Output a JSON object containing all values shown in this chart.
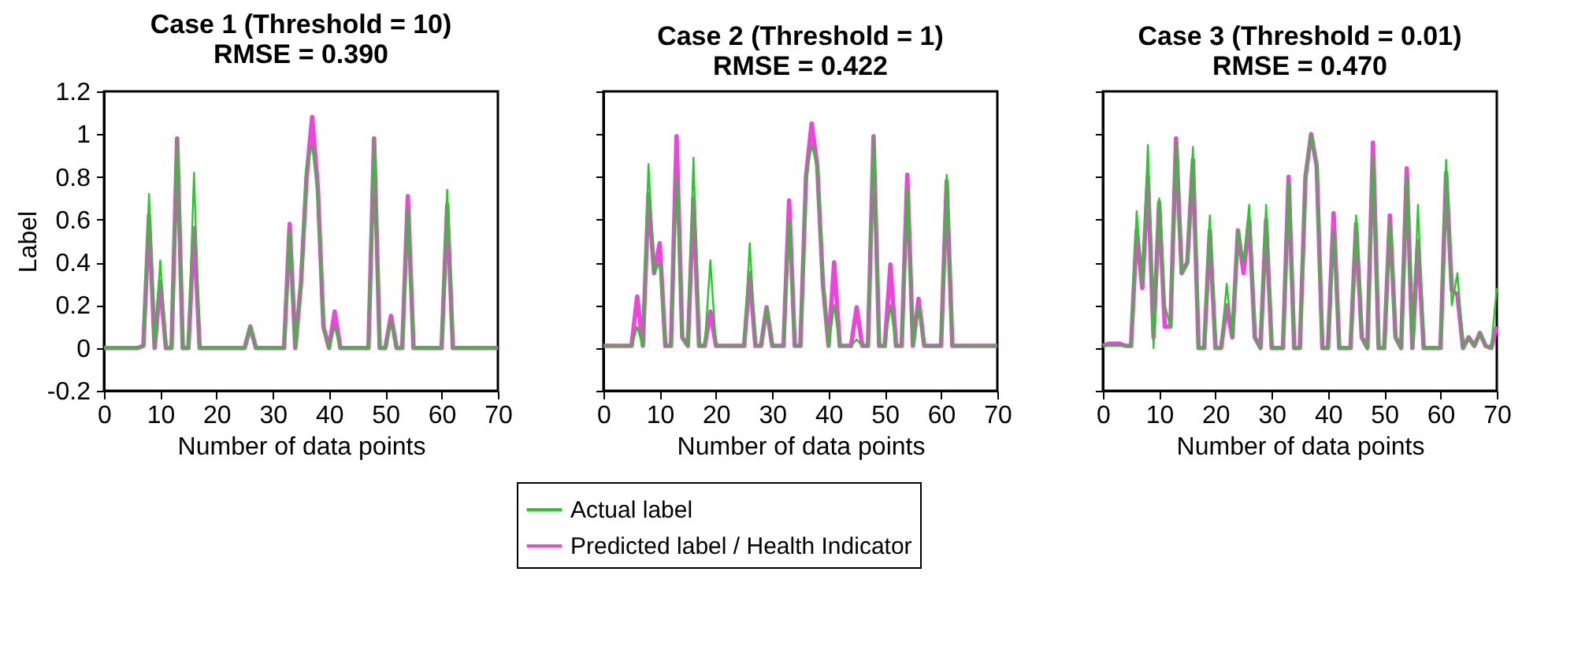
{
  "chart_data": [
    {
      "type": "line",
      "title": "Case 1 (Threshold = 10)",
      "subtitle": "RMSE = 0.390",
      "xlabel": "Number of data points",
      "ylabel": "Label",
      "xlim": [
        0,
        70
      ],
      "xticks": [
        0,
        10,
        20,
        30,
        40,
        50,
        60,
        70
      ],
      "ylim": [
        -0.2,
        1.2
      ],
      "yticks": [
        -0.2,
        0,
        0.2,
        0.4,
        0.6,
        0.8,
        1,
        1.2
      ],
      "grid": false,
      "marker": "none",
      "line_style": "solid",
      "legend": "bottom",
      "x": [
        0,
        1,
        2,
        3,
        4,
        5,
        6,
        7,
        8,
        9,
        10,
        11,
        12,
        13,
        14,
        15,
        16,
        17,
        18,
        19,
        20,
        21,
        22,
        23,
        24,
        25,
        26,
        27,
        28,
        29,
        30,
        31,
        32,
        33,
        34,
        35,
        36,
        37,
        38,
        39,
        40,
        41,
        42,
        43,
        44,
        45,
        46,
        47,
        48,
        49,
        50,
        51,
        52,
        53,
        54,
        55,
        56,
        57,
        58,
        59,
        60,
        61,
        62,
        63,
        64,
        65,
        66,
        67,
        68,
        69,
        70
      ],
      "series": [
        {
          "name": "Actual label",
          "color": "#22cc22",
          "values": [
            0,
            0,
            0,
            0,
            0,
            0,
            0,
            0.01,
            0.72,
            0,
            0.41,
            0,
            0,
            0.98,
            0,
            0,
            0.82,
            0,
            0,
            0,
            0,
            0,
            0,
            0,
            0,
            0,
            0.1,
            0,
            0,
            0,
            0,
            0,
            0,
            0.55,
            0,
            0.3,
            0.85,
            0.95,
            0.7,
            0.1,
            0,
            0.1,
            0,
            0,
            0,
            0,
            0,
            0,
            0.98,
            0,
            0,
            0.13,
            0,
            0,
            0.65,
            0,
            0,
            0,
            0,
            0,
            0,
            0.74,
            0,
            0,
            0,
            0,
            0,
            0,
            0,
            0,
            0
          ]
        },
        {
          "name": "Predicted label / Health Indicator",
          "color": "#ee44dd",
          "values": [
            0,
            0,
            0,
            0,
            0,
            0,
            0,
            0.01,
            0.62,
            0,
            0.31,
            0,
            0,
            0.98,
            0,
            0,
            0.56,
            0,
            0,
            0,
            0,
            0,
            0,
            0,
            0,
            0,
            0.1,
            0,
            0,
            0,
            0,
            0,
            0,
            0.58,
            0,
            0.3,
            0.8,
            1.08,
            0.75,
            0.1,
            0,
            0.17,
            0,
            0,
            0,
            0,
            0,
            0,
            0.98,
            0,
            0,
            0.15,
            0,
            0,
            0.71,
            0,
            0,
            0,
            0,
            0,
            0,
            0.67,
            0,
            0,
            0,
            0,
            0,
            0,
            0,
            0,
            0
          ]
        }
      ]
    },
    {
      "type": "line",
      "title": "Case 2 (Threshold = 1)",
      "subtitle": "RMSE = 0.422",
      "xlabel": "Number of data points",
      "xlim": [
        0,
        70
      ],
      "xticks": [
        0,
        10,
        20,
        30,
        40,
        50,
        60,
        70
      ],
      "ylim": [
        -0.2,
        1.2
      ],
      "yticks": [
        -0.2,
        0,
        0.2,
        0.4,
        0.6,
        0.8,
        1,
        1.2
      ],
      "tick_labels": "x",
      "grid": false,
      "marker": "none",
      "line_style": "solid",
      "legend": "bottom",
      "x": [
        0,
        1,
        2,
        3,
        4,
        5,
        6,
        7,
        8,
        9,
        10,
        11,
        12,
        13,
        14,
        15,
        16,
        17,
        18,
        19,
        20,
        21,
        22,
        23,
        24,
        25,
        26,
        27,
        28,
        29,
        30,
        31,
        32,
        33,
        34,
        35,
        36,
        37,
        38,
        39,
        40,
        41,
        42,
        43,
        44,
        45,
        46,
        47,
        48,
        49,
        50,
        51,
        52,
        53,
        54,
        55,
        56,
        57,
        58,
        59,
        60,
        61,
        62,
        63,
        64,
        65,
        66,
        67,
        68,
        69,
        70
      ],
      "series": [
        {
          "name": "Actual label",
          "color": "#22cc22",
          "values": [
            0.01,
            0.01,
            0.01,
            0.01,
            0.01,
            0.01,
            0.1,
            0.01,
            0.86,
            0.35,
            0.4,
            0.01,
            0.01,
            0.8,
            0.05,
            0.01,
            0.89,
            0.01,
            0.01,
            0.41,
            0.01,
            0.01,
            0.01,
            0.01,
            0.01,
            0.01,
            0.49,
            0.01,
            0.01,
            0.19,
            0.01,
            0.01,
            0.01,
            0.6,
            0.01,
            0.01,
            0.8,
            0.95,
            0.85,
            0.3,
            0.01,
            0.2,
            0.01,
            0.01,
            0.01,
            0.04,
            0.01,
            0.01,
            0.99,
            0.01,
            0.01,
            0.2,
            0.01,
            0.01,
            0.75,
            0.01,
            0.2,
            0.01,
            0.01,
            0.01,
            0.01,
            0.81,
            0.01,
            0.01,
            0.01,
            0.01,
            0.01,
            0.01,
            0.01,
            0.01,
            0.01
          ]
        },
        {
          "name": "Predicted label / Health Indicator",
          "color": "#ee44dd",
          "values": [
            0.01,
            0.01,
            0.01,
            0.01,
            0.01,
            0.01,
            0.24,
            0.01,
            0.72,
            0.35,
            0.49,
            0.01,
            0.01,
            0.99,
            0.05,
            0.01,
            0.7,
            0.01,
            0.01,
            0.17,
            0.01,
            0.01,
            0.01,
            0.01,
            0.01,
            0.01,
            0.35,
            0.01,
            0.01,
            0.19,
            0.01,
            0.01,
            0.01,
            0.69,
            0.01,
            0.01,
            0.8,
            1.05,
            0.85,
            0.3,
            0.01,
            0.4,
            0.01,
            0.01,
            0.01,
            0.19,
            0.01,
            0.01,
            0.99,
            0.01,
            0.01,
            0.39,
            0.01,
            0.01,
            0.81,
            0.01,
            0.23,
            0.01,
            0.01,
            0.01,
            0.01,
            0.78,
            0.01,
            0.01,
            0.01,
            0.01,
            0.01,
            0.01,
            0.01,
            0.01,
            0.01
          ]
        }
      ]
    },
    {
      "type": "line",
      "title": "Case 3 (Threshold = 0.01)",
      "subtitle": "RMSE = 0.470",
      "xlabel": "Number of data points",
      "xlim": [
        0,
        70
      ],
      "xticks": [
        0,
        10,
        20,
        30,
        40,
        50,
        60,
        70
      ],
      "ylim": [
        -0.2,
        1.2
      ],
      "yticks": [
        -0.2,
        0,
        0.2,
        0.4,
        0.6,
        0.8,
        1,
        1.2
      ],
      "tick_labels": "x",
      "grid": false,
      "marker": "none",
      "line_style": "solid",
      "legend": "bottom",
      "x": [
        0,
        1,
        2,
        3,
        4,
        5,
        6,
        7,
        8,
        9,
        10,
        11,
        12,
        13,
        14,
        15,
        16,
        17,
        18,
        19,
        20,
        21,
        22,
        23,
        24,
        25,
        26,
        27,
        28,
        29,
        30,
        31,
        32,
        33,
        34,
        35,
        36,
        37,
        38,
        39,
        40,
        41,
        42,
        43,
        44,
        45,
        46,
        47,
        48,
        49,
        50,
        51,
        52,
        53,
        54,
        55,
        56,
        57,
        58,
        59,
        60,
        61,
        62,
        63,
        64,
        65,
        66,
        67,
        68,
        69,
        70
      ],
      "series": [
        {
          "name": "Actual label",
          "color": "#22cc22",
          "values": [
            0.01,
            0.01,
            0.01,
            0.01,
            0.01,
            0.01,
            0.64,
            0.3,
            0.95,
            0,
            0.7,
            0.2,
            0.1,
            0.97,
            0.35,
            0.4,
            0.94,
            0,
            0,
            0.62,
            0,
            0,
            0.3,
            0.05,
            0.55,
            0.4,
            0.67,
            0.05,
            0,
            0.67,
            0,
            0,
            0,
            0.78,
            0,
            0,
            0.8,
            1,
            0.85,
            0,
            0,
            0.55,
            0,
            0,
            0,
            0.62,
            0.05,
            0,
            0.9,
            0,
            0,
            0.6,
            0.05,
            0,
            0.8,
            0,
            0.67,
            0,
            0,
            0,
            0,
            0.88,
            0.2,
            0.35,
            0,
            0.05,
            0.01,
            0.07,
            0.01,
            0,
            0.28
          ]
        },
        {
          "name": "Predicted label / Health Indicator",
          "color": "#ee44dd",
          "values": [
            0.01,
            0.02,
            0.02,
            0.02,
            0.01,
            0.01,
            0.55,
            0.28,
            0.8,
            0.05,
            0.68,
            0.1,
            0.1,
            0.98,
            0.35,
            0.4,
            0.88,
            0,
            0,
            0.55,
            0,
            0,
            0.2,
            0.05,
            0.55,
            0.35,
            0.6,
            0.05,
            0,
            0.6,
            0,
            0,
            0,
            0.8,
            0,
            0,
            0.8,
            1,
            0.85,
            0,
            0,
            0.63,
            0,
            0,
            0,
            0.58,
            0.05,
            0,
            0.96,
            0,
            0,
            0.62,
            0.05,
            0,
            0.84,
            0,
            0.5,
            0,
            0,
            0,
            0,
            0.82,
            0.27,
            0.25,
            0,
            0.05,
            0.01,
            0.07,
            0.01,
            0,
            0.1
          ]
        }
      ]
    }
  ]
}
